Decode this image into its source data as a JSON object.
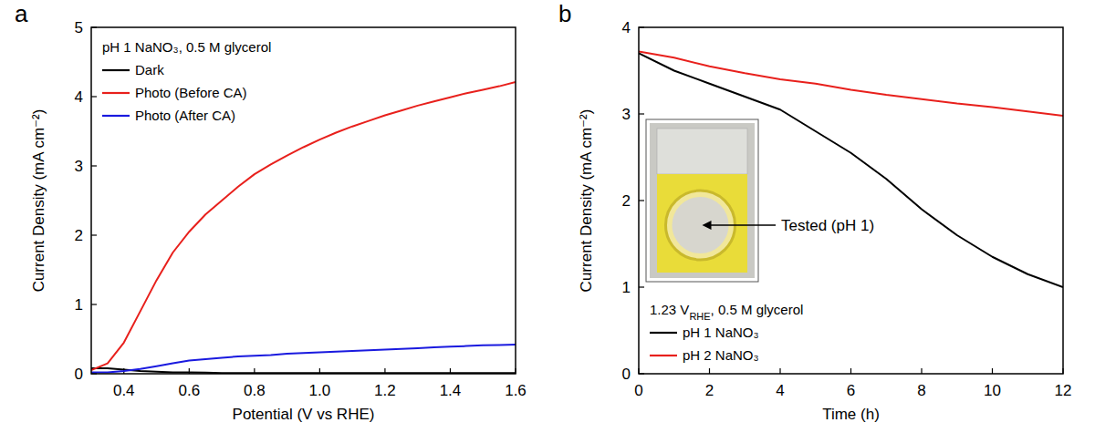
{
  "chart_data": [
    {
      "type": "line",
      "label": "a",
      "annotation": "pH 1 NaNO₃, 0.5 M glycerol",
      "x_label": "Potential (V vs RHE)",
      "y_label": "Current Density (mA cm⁻²)",
      "x": [
        0.3,
        0.35,
        0.4,
        0.45,
        0.5,
        0.55,
        0.6,
        0.65,
        0.7,
        0.75,
        0.8,
        0.85,
        0.9,
        0.95,
        1.0,
        1.05,
        1.1,
        1.15,
        1.2,
        1.25,
        1.3,
        1.35,
        1.4,
        1.45,
        1.5,
        1.55,
        1.6
      ],
      "xlim": [
        0.3,
        1.6
      ],
      "xticks": [
        0.4,
        0.6,
        0.8,
        {
          "value": 1,
          "label": "1.0"
        },
        1.2,
        1.4,
        1.6
      ],
      "ylim": [
        0,
        5
      ],
      "yticks": [
        0,
        1,
        2,
        3,
        4,
        5
      ],
      "legend": "upper left",
      "series": [
        {
          "name": "Dark",
          "color": "#000000",
          "values": [
            0.08,
            0.08,
            0.06,
            0.04,
            0.03,
            0.02,
            0.02,
            0.015,
            0.01,
            0.01,
            0.01,
            0.01,
            0.01,
            0.01,
            0.01,
            0.01,
            0.01,
            0.01,
            0.01,
            0.01,
            0.01,
            0.01,
            0.01,
            0.01,
            0.01,
            0.01,
            0.01
          ]
        },
        {
          "name": "Photo (Before CA)",
          "color": "#e8201c",
          "values": [
            0.05,
            0.15,
            0.45,
            0.9,
            1.35,
            1.75,
            2.05,
            2.3,
            2.5,
            2.7,
            2.88,
            3.02,
            3.15,
            3.27,
            3.38,
            3.48,
            3.57,
            3.65,
            3.73,
            3.8,
            3.87,
            3.93,
            3.99,
            4.05,
            4.1,
            4.15,
            4.21
          ]
        },
        {
          "name": "Photo (After CA)",
          "color": "#1a1adf",
          "values": [
            0.02,
            0.02,
            0.04,
            0.07,
            0.11,
            0.15,
            0.19,
            0.21,
            0.23,
            0.25,
            0.26,
            0.27,
            0.29,
            0.3,
            0.31,
            0.32,
            0.33,
            0.34,
            0.35,
            0.36,
            0.37,
            0.38,
            0.39,
            0.4,
            0.41,
            0.415,
            0.42
          ]
        }
      ]
    },
    {
      "type": "line",
      "label": "b",
      "annotation": [
        "1.23 V",
        "RHE",
        ", 0.5 M glycerol"
      ],
      "inset_label": "Tested (pH 1)",
      "x_label": "Time (h)",
      "y_label": "Current Density (mA cm⁻²)",
      "x": [
        0,
        1,
        2,
        3,
        4,
        5,
        6,
        7,
        8,
        9,
        10,
        11,
        12
      ],
      "xlim": [
        0,
        12
      ],
      "xticks": [
        0,
        2,
        4,
        6,
        8,
        10,
        12
      ],
      "ylim": [
        0,
        4
      ],
      "yticks": [
        0,
        1,
        2,
        3,
        4
      ],
      "legend": "lower left",
      "series": [
        {
          "name": "pH 1 NaNO₃",
          "color": "#000000",
          "values": [
            3.7,
            3.5,
            3.35,
            3.2,
            3.05,
            2.8,
            2.55,
            2.25,
            1.9,
            1.6,
            1.35,
            1.15,
            1.0
          ]
        },
        {
          "name": "pH 2 NaNO₃",
          "color": "#e8201c",
          "values": [
            3.72,
            3.65,
            3.55,
            3.47,
            3.4,
            3.35,
            3.28,
            3.22,
            3.17,
            3.12,
            3.08,
            3.03,
            2.98
          ]
        }
      ]
    }
  ]
}
